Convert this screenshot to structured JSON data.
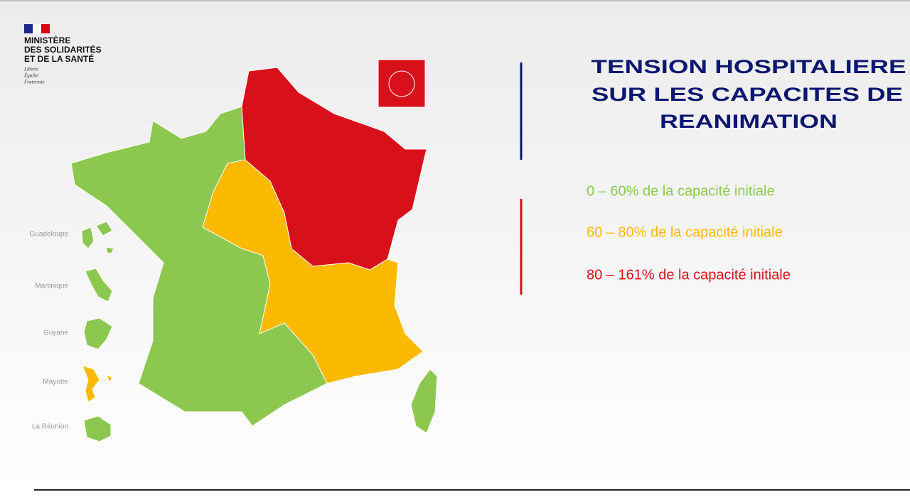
{
  "header": {
    "logo_lines": [
      "MINISTÈRE",
      "DES SOLIDARITÉS",
      "ET DE LA SANTÉ"
    ],
    "motto": [
      "Liberté",
      "Égalité",
      "Fraternité"
    ]
  },
  "title_lines": [
    "TENSION HOSPITALIERE",
    "SUR LES CAPACITES DE",
    "REANIMATION"
  ],
  "legend": [
    {
      "label": "0 – 60% de la capacité initiale",
      "color": "#8cc850"
    },
    {
      "label": "60 – 80% de la capacité initiale",
      "color": "#fbb900"
    },
    {
      "label": "80 – 161% de la capacité initiale",
      "color": "#d7101a"
    }
  ],
  "overseas": [
    {
      "name": "Guadeloupe",
      "color": "#8cc850"
    },
    {
      "name": "Martinique",
      "color": "#8cc850"
    },
    {
      "name": "Guyane",
      "color": "#8cc850"
    },
    {
      "name": "Mayotte",
      "color": "#fbb900"
    },
    {
      "name": "La Réunion",
      "color": "#8cc850"
    }
  ]
}
